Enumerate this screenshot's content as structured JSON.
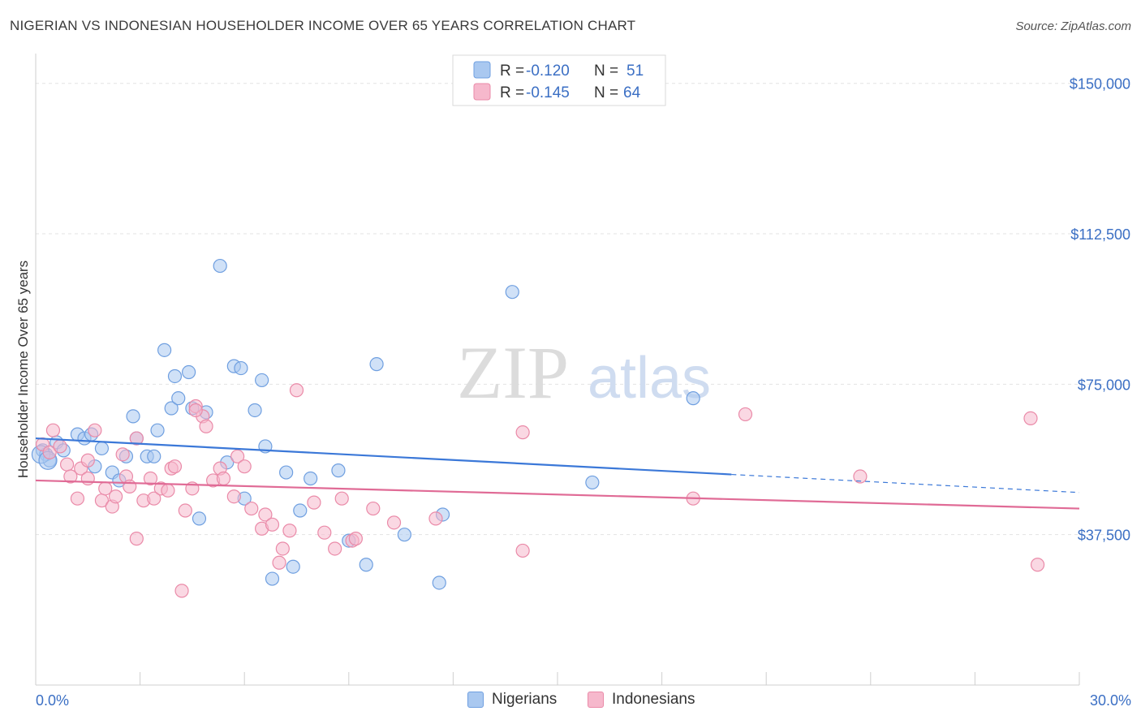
{
  "header": {
    "title": "NIGERIAN VS INDONESIAN HOUSEHOLDER INCOME OVER 65 YEARS CORRELATION CHART",
    "source": "Source: ZipAtlas.com"
  },
  "watermark": {
    "zip": "ZIP",
    "atlas": "atlas"
  },
  "legend": {
    "rows": [
      {
        "r_label": "R = ",
        "r_value": "-0.120",
        "n_label": "N = ",
        "n_value": "51",
        "color": "#a9c8f0",
        "stroke": "#6f9fe0"
      },
      {
        "r_label": "R = ",
        "r_value": "-0.145",
        "n_label": "N = ",
        "n_value": "64",
        "color": "#f6b8cc",
        "stroke": "#ea8aa8"
      }
    ]
  },
  "bottom_legend": {
    "items": [
      {
        "label": "Nigerians",
        "color": "#a9c8f0",
        "stroke": "#6f9fe0"
      },
      {
        "label": "Indonesians",
        "color": "#f6b8cc",
        "stroke": "#ea8aa8"
      }
    ]
  },
  "chart_data": {
    "type": "scatter",
    "title": "NIGERIAN VS INDONESIAN HOUSEHOLDER INCOME OVER 65 YEARS CORRELATION CHART",
    "xlabel": "",
    "ylabel": "Householder Income Over 65 years",
    "xlim": [
      0,
      30
    ],
    "ylim": [
      0,
      155000
    ],
    "x_tick_labels": [
      "0.0%",
      "30.0%"
    ],
    "y_ticks": [
      37500,
      75000,
      112500,
      150000
    ],
    "y_tick_labels": [
      "$37,500",
      "$75,000",
      "$112,500",
      "$150,000"
    ],
    "grid": true,
    "legend_position": "top-center",
    "colors": {
      "nigerians": "#3b78d8",
      "indonesians": "#e06b96",
      "tick_label": "#3b6fc4"
    },
    "series": [
      {
        "name": "Nigerians",
        "r": -0.12,
        "n": 51,
        "trend": {
          "x0": 0.0,
          "y0": 61500,
          "x1": 20.0,
          "y1": 52500,
          "dashed_to_x": 30.0,
          "dashed_to_y": 48000
        },
        "points": [
          [
            0.2,
            58500
          ],
          [
            0.3,
            57500
          ],
          [
            0.4,
            56000
          ],
          [
            0.6,
            60500
          ],
          [
            0.8,
            58500
          ],
          [
            1.2,
            62500
          ],
          [
            1.4,
            61500
          ],
          [
            1.6,
            62500
          ],
          [
            1.9,
            59000
          ],
          [
            1.7,
            54500
          ],
          [
            2.2,
            53000
          ],
          [
            2.4,
            51000
          ],
          [
            2.6,
            57000
          ],
          [
            2.8,
            67000
          ],
          [
            2.9,
            61500
          ],
          [
            3.2,
            57000
          ],
          [
            3.4,
            57000
          ],
          [
            3.5,
            63500
          ],
          [
            3.7,
            83500
          ],
          [
            3.9,
            69000
          ],
          [
            4.0,
            77000
          ],
          [
            4.1,
            71500
          ],
          [
            4.4,
            78000
          ],
          [
            4.5,
            69000
          ],
          [
            4.7,
            41500
          ],
          [
            4.9,
            68000
          ],
          [
            5.3,
            104500
          ],
          [
            5.5,
            55500
          ],
          [
            5.7,
            79500
          ],
          [
            5.9,
            79000
          ],
          [
            6.0,
            46500
          ],
          [
            6.3,
            68500
          ],
          [
            6.5,
            76000
          ],
          [
            6.6,
            59500
          ],
          [
            6.8,
            26500
          ],
          [
            7.2,
            53000
          ],
          [
            7.4,
            29500
          ],
          [
            7.6,
            43500
          ],
          [
            7.9,
            51500
          ],
          [
            8.7,
            53500
          ],
          [
            9.0,
            36000
          ],
          [
            9.5,
            30000
          ],
          [
            9.8,
            80000
          ],
          [
            10.6,
            37500
          ],
          [
            11.6,
            25500
          ],
          [
            11.7,
            42500
          ],
          [
            13.7,
            98000
          ],
          [
            16.0,
            50500
          ],
          [
            18.9,
            71500
          ],
          [
            0.15,
            57500
          ],
          [
            0.35,
            56000
          ]
        ]
      },
      {
        "name": "Indonesians",
        "r": -0.145,
        "n": 64,
        "trend": {
          "x0": 0.0,
          "y0": 51000,
          "x1": 30.0,
          "y1": 44000
        },
        "points": [
          [
            0.2,
            60000
          ],
          [
            0.4,
            58000
          ],
          [
            0.5,
            63500
          ],
          [
            0.7,
            59500
          ],
          [
            0.9,
            55000
          ],
          [
            1.0,
            52000
          ],
          [
            1.2,
            46500
          ],
          [
            1.3,
            54000
          ],
          [
            1.5,
            51500
          ],
          [
            1.5,
            56000
          ],
          [
            1.7,
            63500
          ],
          [
            1.9,
            46000
          ],
          [
            2.0,
            49000
          ],
          [
            2.2,
            44500
          ],
          [
            2.3,
            47000
          ],
          [
            2.5,
            57500
          ],
          [
            2.6,
            52000
          ],
          [
            2.7,
            49500
          ],
          [
            2.9,
            61500
          ],
          [
            2.9,
            36500
          ],
          [
            3.1,
            46000
          ],
          [
            3.3,
            51500
          ],
          [
            3.4,
            46500
          ],
          [
            3.6,
            49000
          ],
          [
            3.8,
            48500
          ],
          [
            3.9,
            54000
          ],
          [
            4.0,
            54500
          ],
          [
            4.2,
            23500
          ],
          [
            4.3,
            43500
          ],
          [
            4.5,
            49000
          ],
          [
            4.6,
            69500
          ],
          [
            4.8,
            67000
          ],
          [
            4.9,
            64500
          ],
          [
            5.1,
            51000
          ],
          [
            5.3,
            54000
          ],
          [
            5.4,
            51500
          ],
          [
            5.7,
            47000
          ],
          [
            5.8,
            57000
          ],
          [
            6.0,
            54500
          ],
          [
            6.2,
            44000
          ],
          [
            6.5,
            39000
          ],
          [
            6.6,
            42500
          ],
          [
            6.8,
            40000
          ],
          [
            7.0,
            30500
          ],
          [
            7.1,
            34000
          ],
          [
            7.3,
            38500
          ],
          [
            7.5,
            73500
          ],
          [
            8.0,
            45500
          ],
          [
            8.3,
            38000
          ],
          [
            8.6,
            34000
          ],
          [
            8.8,
            46500
          ],
          [
            9.1,
            36000
          ],
          [
            9.2,
            36500
          ],
          [
            9.7,
            44000
          ],
          [
            10.3,
            40500
          ],
          [
            11.5,
            41500
          ],
          [
            14.0,
            33500
          ],
          [
            14.0,
            63000
          ],
          [
            18.9,
            46500
          ],
          [
            20.4,
            67500
          ],
          [
            23.7,
            52000
          ],
          [
            28.6,
            66500
          ],
          [
            28.8,
            30000
          ],
          [
            4.6,
            68500
          ]
        ]
      }
    ]
  }
}
